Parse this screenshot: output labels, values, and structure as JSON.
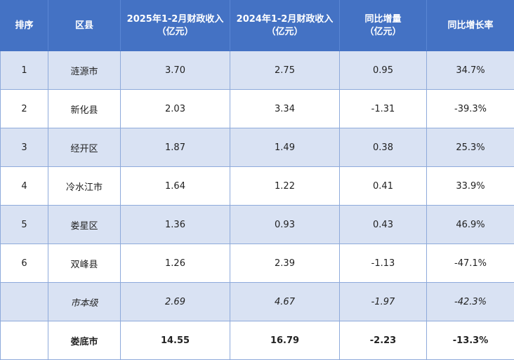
{
  "header": {
    "rank": "排序",
    "district": "区县",
    "revenue_2025": [
      "2025年1-2月财政收入",
      "（亿元）"
    ],
    "revenue_2024": [
      "2024年1-2月财政收入",
      "（亿元）"
    ],
    "yoy_increase": [
      "同比增量",
      "（亿元）"
    ],
    "yoy_rate": "同比增长率"
  },
  "rows": [
    {
      "rank": "1",
      "district": "涟源市",
      "r2025": "3.70",
      "r2024": "2.75",
      "inc": "0.95",
      "rate": "34.7%"
    },
    {
      "rank": "2",
      "district": "新化县",
      "r2025": "2.03",
      "r2024": "3.34",
      "inc": "-1.31",
      "rate": "-39.3%"
    },
    {
      "rank": "3",
      "district": "经开区",
      "r2025": "1.87",
      "r2024": "1.49",
      "inc": "0.38",
      "rate": "25.3%"
    },
    {
      "rank": "4",
      "district": "冷水江市",
      "r2025": "1.64",
      "r2024": "1.22",
      "inc": "0.41",
      "rate": "33.9%"
    },
    {
      "rank": "5",
      "district": "娄星区",
      "r2025": "1.36",
      "r2024": "0.93",
      "inc": "0.43",
      "rate": "46.9%"
    },
    {
      "rank": "6",
      "district": "双峰县",
      "r2025": "1.26",
      "r2024": "2.39",
      "inc": "-1.13",
      "rate": "-47.1%"
    },
    {
      "rank": "",
      "district": "市本级",
      "r2025": "2.69",
      "r2024": "4.67",
      "inc": "-1.97",
      "rate": "-42.3%"
    },
    {
      "rank": "",
      "district": "娄底市",
      "r2025": "14.55",
      "r2024": "16.79",
      "inc": "-2.23",
      "rate": "-13.3%"
    }
  ]
}
